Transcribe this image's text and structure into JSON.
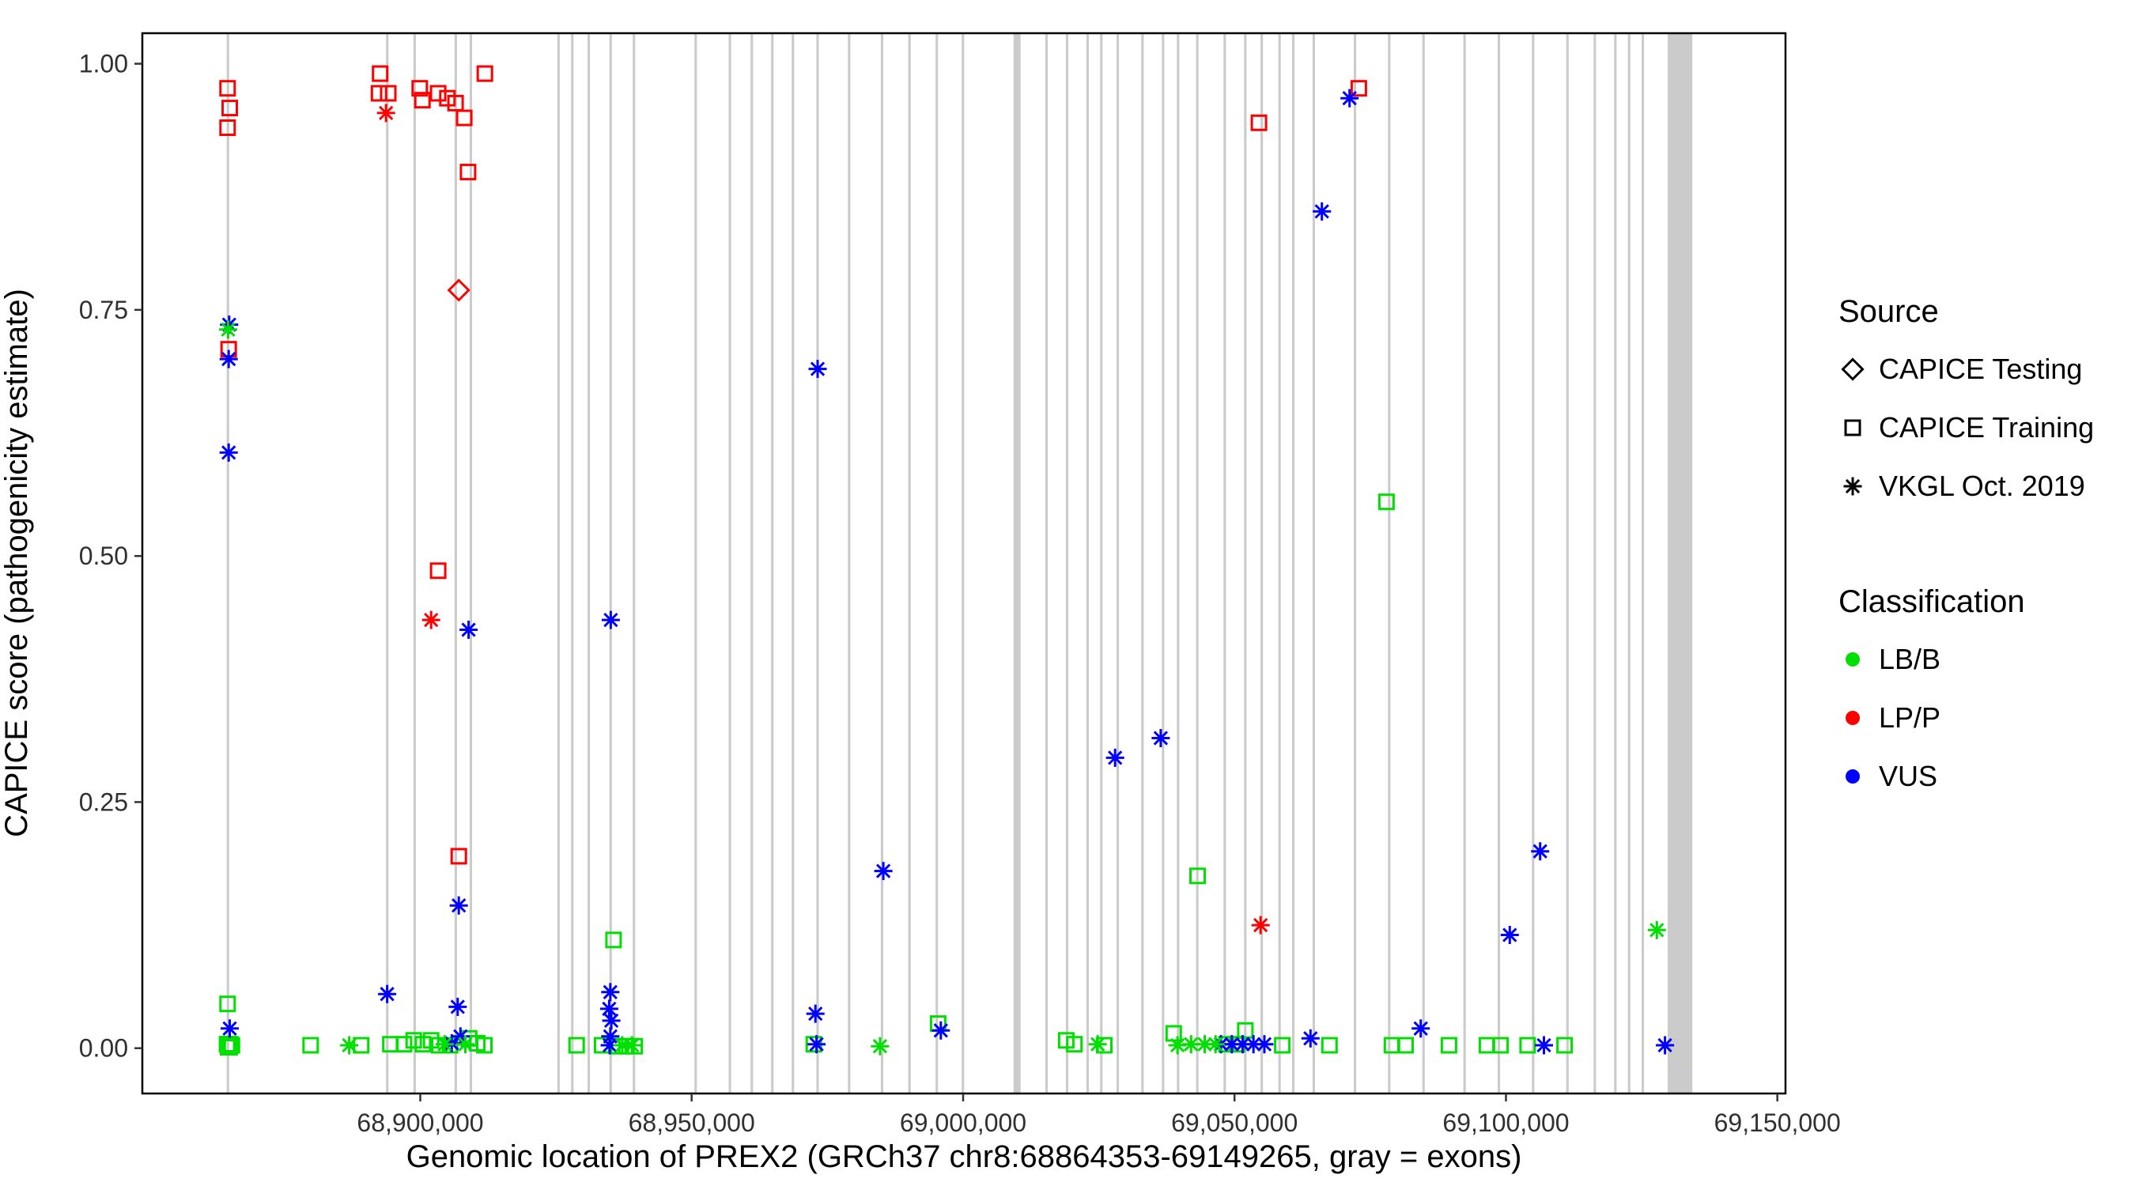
{
  "figure": {
    "background": "#FFFFFF",
    "panel_border": "#000000",
    "tick_label_color": "#303030"
  },
  "legend": {
    "source": {
      "title": "Source",
      "items": [
        {
          "label": "CAPICE Testing",
          "shape": "diamond"
        },
        {
          "label": "CAPICE Training",
          "shape": "square"
        },
        {
          "label": "VKGL Oct. 2019",
          "shape": "asterisk"
        }
      ]
    },
    "classification": {
      "title": "Classification",
      "items": [
        {
          "label": "LB/B",
          "color_key": "LB/B"
        },
        {
          "label": "LP/P",
          "color_key": "LP/P"
        },
        {
          "label": "VUS",
          "color_key": "VUS"
        }
      ]
    }
  },
  "chart_data": {
    "type": "scatter",
    "title": "",
    "xlabel": "Genomic location of PREX2 (GRCh37 chr8:68864353-69149265, gray = exons)",
    "ylabel": "CAPICE score (pathogenicity estimate)",
    "gene_region": "chr8:68864353-69149265",
    "xlim": [
      68848800,
      69151500
    ],
    "ylim": [
      -0.046,
      1.031
    ],
    "x_ticks": {
      "values": [
        68900000,
        68950000,
        69000000,
        69050000,
        69100000,
        69150000
      ],
      "labels": [
        "68,900,000",
        "68,950,000",
        "69,000,000",
        "69,050,000",
        "69,100,000",
        "69,150,000"
      ]
    },
    "y_ticks": {
      "values": [
        0,
        0.25,
        0.5,
        0.75,
        1
      ],
      "labels": [
        "0.00",
        "0.25",
        "0.50",
        "0.75",
        "1.00"
      ]
    },
    "colors": {
      "LB/B": "#00E000",
      "LP/P": "#FF0000",
      "VUS": "#0000FF"
    },
    "shapes": {
      "CAPICE Testing": "diamond",
      "CAPICE Training": "square",
      "VKGL Oct. 2019": "asterisk"
    },
    "exon_color": "#CBCBCB",
    "exons": [
      [
        68864350,
        450
      ],
      [
        68893690,
        450
      ],
      [
        68898740,
        450
      ],
      [
        68906310,
        450
      ],
      [
        68909090,
        450
      ],
      [
        68925250,
        450
      ],
      [
        68927780,
        450
      ],
      [
        68930810,
        450
      ],
      [
        68934850,
        450
      ],
      [
        68939140,
        450
      ],
      [
        68950500,
        450
      ],
      [
        68956810,
        450
      ],
      [
        68960850,
        450
      ],
      [
        68964640,
        450
      ],
      [
        68968430,
        450
      ],
      [
        68972970,
        450
      ],
      [
        68978780,
        450
      ],
      [
        68984840,
        450
      ],
      [
        68989890,
        450
      ],
      [
        68994940,
        450
      ],
      [
        68999740,
        450
      ],
      [
        69009300,
        1300
      ],
      [
        69015140,
        450
      ],
      [
        69018930,
        450
      ],
      [
        69022720,
        450
      ],
      [
        69025240,
        450
      ],
      [
        69028270,
        450
      ],
      [
        69032820,
        450
      ],
      [
        69036610,
        450
      ],
      [
        69039380,
        450
      ],
      [
        69042920,
        450
      ],
      [
        69047970,
        450
      ],
      [
        69051760,
        450
      ],
      [
        69054790,
        450
      ],
      [
        69058070,
        450
      ],
      [
        69060600,
        450
      ],
      [
        69064380,
        450
      ],
      [
        69071960,
        450
      ],
      [
        69078270,
        450
      ],
      [
        69084590,
        450
      ],
      [
        69092160,
        450
      ],
      [
        69098480,
        450
      ],
      [
        69104790,
        450
      ],
      [
        69111100,
        450
      ],
      [
        69116150,
        450
      ],
      [
        69119940,
        450
      ],
      [
        69122470,
        450
      ],
      [
        69124990,
        450
      ],
      [
        69129790,
        4550
      ]
    ],
    "series": [
      {
        "name": "CAPICE Testing / LP/P",
        "shape": "diamond",
        "color_key": "LP/P",
        "points": [
          [
            68907100,
            0.77
          ]
        ]
      },
      {
        "name": "CAPICE Training / LP/P",
        "shape": "square",
        "color_key": "LP/P",
        "points": [
          [
            68864500,
            0.975
          ],
          [
            68864900,
            0.955
          ],
          [
            68864500,
            0.935
          ],
          [
            68864700,
            0.71
          ],
          [
            68892600,
            0.99
          ],
          [
            68892400,
            0.97
          ],
          [
            68894100,
            0.97
          ],
          [
            68899900,
            0.975
          ],
          [
            68900400,
            0.963
          ],
          [
            68903300,
            0.97
          ],
          [
            68905000,
            0.965
          ],
          [
            68906500,
            0.96
          ],
          [
            68908100,
            0.945
          ],
          [
            68908800,
            0.89
          ],
          [
            68911900,
            0.99
          ],
          [
            68903300,
            0.485
          ],
          [
            68907100,
            0.195
          ],
          [
            69054500,
            0.94
          ],
          [
            69072900,
            0.975
          ]
        ]
      },
      {
        "name": "CAPICE Training / LB/B",
        "shape": "square",
        "color_key": "LB/B",
        "points": [
          [
            68864500,
            0.045
          ],
          [
            68864400,
            0.004
          ],
          [
            68864700,
            0.004
          ],
          [
            68865000,
            0.004
          ],
          [
            68864600,
            0.001
          ],
          [
            68864900,
            0.001
          ],
          [
            68865300,
            0.003
          ],
          [
            68879800,
            0.003
          ],
          [
            68889100,
            0.003
          ],
          [
            68894500,
            0.004
          ],
          [
            68897000,
            0.004
          ],
          [
            68898800,
            0.008
          ],
          [
            68900500,
            0.004
          ],
          [
            68902000,
            0.008
          ],
          [
            68903500,
            0.003
          ],
          [
            68905500,
            0.003
          ],
          [
            68909000,
            0.01
          ],
          [
            68910500,
            0.005
          ],
          [
            68911800,
            0.003
          ],
          [
            68928800,
            0.003
          ],
          [
            68933500,
            0.003
          ],
          [
            68935600,
            0.11
          ],
          [
            68936500,
            0.002
          ],
          [
            68938000,
            0.002
          ],
          [
            68939500,
            0.002
          ],
          [
            68972500,
            0.004
          ],
          [
            68995400,
            0.025
          ],
          [
            69019000,
            0.008
          ],
          [
            69020500,
            0.004
          ],
          [
            69026000,
            0.003
          ],
          [
            69038800,
            0.015
          ],
          [
            69043200,
            0.175
          ],
          [
            69048500,
            0.004
          ],
          [
            69050500,
            0.004
          ],
          [
            69052000,
            0.018
          ],
          [
            69058800,
            0.003
          ],
          [
            69067500,
            0.003
          ],
          [
            69078000,
            0.555
          ],
          [
            69079000,
            0.003
          ],
          [
            69081500,
            0.003
          ],
          [
            69089500,
            0.003
          ],
          [
            69096500,
            0.003
          ],
          [
            69099000,
            0.003
          ],
          [
            69104000,
            0.003
          ],
          [
            69110800,
            0.003
          ]
        ]
      },
      {
        "name": "VKGL Oct. 2019 / LP/P",
        "shape": "asterisk",
        "color_key": "LP/P",
        "points": [
          [
            68893700,
            0.95
          ],
          [
            68902000,
            0.435
          ],
          [
            69054800,
            0.125
          ]
        ]
      },
      {
        "name": "VKGL Oct. 2019 / VUS",
        "shape": "asterisk",
        "color_key": "VUS",
        "points": [
          [
            68864800,
            0.735
          ],
          [
            68864700,
            0.7
          ],
          [
            68864700,
            0.605
          ],
          [
            68864900,
            0.02
          ],
          [
            68893900,
            0.055
          ],
          [
            68908900,
            0.425
          ],
          [
            68907100,
            0.145
          ],
          [
            68906900,
            0.042
          ],
          [
            68907400,
            0.012
          ],
          [
            68905800,
            0.005
          ],
          [
            68935100,
            0.435
          ],
          [
            68935000,
            0.057
          ],
          [
            68934800,
            0.04
          ],
          [
            68935200,
            0.028
          ],
          [
            68935000,
            0.012
          ],
          [
            68934900,
            0.003
          ],
          [
            68973200,
            0.69
          ],
          [
            68972800,
            0.035
          ],
          [
            68973000,
            0.004
          ],
          [
            68985300,
            0.18
          ],
          [
            68995900,
            0.018
          ],
          [
            69028000,
            0.295
          ],
          [
            69036400,
            0.315
          ],
          [
            69047500,
            0.004
          ],
          [
            69049500,
            0.004
          ],
          [
            69051500,
            0.004
          ],
          [
            69053500,
            0.004
          ],
          [
            69055500,
            0.004
          ],
          [
            69064000,
            0.01
          ],
          [
            69066100,
            0.85
          ],
          [
            69071200,
            0.965
          ],
          [
            69084300,
            0.02
          ],
          [
            69100700,
            0.115
          ],
          [
            69106300,
            0.2
          ],
          [
            69107000,
            0.003
          ],
          [
            69129300,
            0.003
          ]
        ]
      },
      {
        "name": "VKGL Oct. 2019 / LB/B",
        "shape": "asterisk",
        "color_key": "LB/B",
        "points": [
          [
            68864600,
            0.73
          ],
          [
            68886900,
            0.003
          ],
          [
            68904500,
            0.004
          ],
          [
            68908300,
            0.004
          ],
          [
            68937200,
            0.003
          ],
          [
            68939000,
            0.003
          ],
          [
            68984700,
            0.002
          ],
          [
            69024800,
            0.004
          ],
          [
            69039500,
            0.003
          ],
          [
            69042000,
            0.004
          ],
          [
            69044500,
            0.004
          ],
          [
            69046500,
            0.004
          ],
          [
            69127800,
            0.12
          ]
        ]
      }
    ]
  }
}
